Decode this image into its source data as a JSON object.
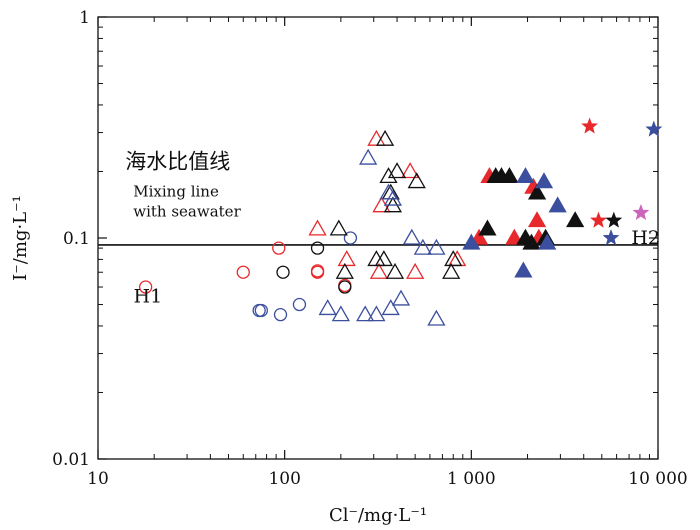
{
  "chart_data": {
    "type": "scatter",
    "title": "",
    "xlabel": "Cl⁻/mg·L⁻¹",
    "ylabel": "I⁻/mg·L⁻¹",
    "xscale": "log",
    "yscale": "log",
    "xlim": [
      10,
      10000
    ],
    "ylim": [
      0.01,
      1
    ],
    "x_ticks": [
      {
        "value": 10,
        "label": "10"
      },
      {
        "value": 100,
        "label": "100"
      },
      {
        "value": 1000,
        "label": "1 000"
      },
      {
        "value": 10000,
        "label": "10 000"
      }
    ],
    "y_ticks": [
      {
        "value": 0.01,
        "label": "0.01"
      },
      {
        "value": 0.1,
        "label": "0.1"
      },
      {
        "value": 1,
        "label": "1"
      }
    ],
    "mixing_line": {
      "y": 0.093,
      "label_cn": "海水比值线",
      "label_en_1": "Mixing line",
      "label_en_2": "with seawater",
      "label_at": {
        "x": 14,
        "y": 0.19
      }
    },
    "annotations": [
      {
        "text": "H1",
        "x": 15.5,
        "y": 0.055
      },
      {
        "text": "H2",
        "x": 7200,
        "y": 0.101
      }
    ],
    "colors": {
      "red": "#e8292b",
      "black": "#111111",
      "blue": "#3b4f9e",
      "pink": "#cc66bb"
    },
    "series": [
      {
        "name": "open circle red",
        "marker": "circle",
        "fill": "open",
        "color": "red",
        "points": [
          [
            18,
            0.06
          ],
          [
            60,
            0.07
          ],
          [
            93,
            0.09
          ],
          [
            150,
            0.07
          ],
          [
            150,
            0.071
          ],
          [
            210,
            0.061
          ]
        ]
      },
      {
        "name": "open circle black",
        "marker": "circle",
        "fill": "open",
        "color": "black",
        "points": [
          [
            98,
            0.07
          ],
          [
            150,
            0.09
          ],
          [
            210,
            0.06
          ]
        ]
      },
      {
        "name": "open circle blue",
        "marker": "circle",
        "fill": "open",
        "color": "blue",
        "points": [
          [
            73,
            0.047
          ],
          [
            75,
            0.047
          ],
          [
            95,
            0.045
          ],
          [
            120,
            0.05
          ],
          [
            225,
            0.1
          ]
        ]
      },
      {
        "name": "open triangle red",
        "marker": "triangle",
        "fill": "open",
        "color": "red",
        "points": [
          [
            150,
            0.11
          ],
          [
            215,
            0.08
          ],
          [
            310,
            0.28
          ],
          [
            330,
            0.14
          ],
          [
            320,
            0.07
          ],
          [
            470,
            0.2
          ],
          [
            500,
            0.07
          ],
          [
            840,
            0.08
          ]
        ]
      },
      {
        "name": "open triangle black",
        "marker": "triangle",
        "fill": "open",
        "color": "black",
        "points": [
          [
            195,
            0.11
          ],
          [
            210,
            0.07
          ],
          [
            345,
            0.28
          ],
          [
            360,
            0.19
          ],
          [
            370,
            0.16
          ],
          [
            380,
            0.14
          ],
          [
            310,
            0.08
          ],
          [
            340,
            0.08
          ],
          [
            400,
            0.2
          ],
          [
            390,
            0.07
          ],
          [
            510,
            0.18
          ],
          [
            780,
            0.07
          ],
          [
            800,
            0.08
          ]
        ]
      },
      {
        "name": "open triangle blue",
        "marker": "triangle",
        "fill": "open",
        "color": "blue",
        "points": [
          [
            280,
            0.23
          ],
          [
            360,
            0.16
          ],
          [
            380,
            0.15
          ],
          [
            480,
            0.1
          ],
          [
            550,
            0.09
          ],
          [
            650,
            0.09
          ],
          [
            170,
            0.048
          ],
          [
            200,
            0.045
          ],
          [
            270,
            0.045
          ],
          [
            310,
            0.045
          ],
          [
            370,
            0.048
          ],
          [
            420,
            0.053
          ],
          [
            650,
            0.043
          ]
        ]
      },
      {
        "name": "filled triangle red",
        "marker": "triangle",
        "fill": "solid",
        "color": "red",
        "points": [
          [
            1100,
            0.1
          ],
          [
            1250,
            0.19
          ],
          [
            1700,
            0.1
          ],
          [
            2150,
            0.17
          ],
          [
            2250,
            0.12
          ],
          [
            2300,
            0.1
          ]
        ]
      },
      {
        "name": "filled triangle black",
        "marker": "triangle",
        "fill": "solid",
        "color": "black",
        "points": [
          [
            1220,
            0.11
          ],
          [
            1350,
            0.19
          ],
          [
            1450,
            0.19
          ],
          [
            1600,
            0.19
          ],
          [
            1950,
            0.1
          ],
          [
            2100,
            0.095
          ],
          [
            2250,
            0.16
          ],
          [
            2500,
            0.1
          ],
          [
            3600,
            0.12
          ]
        ]
      },
      {
        "name": "filled triangle blue",
        "marker": "triangle",
        "fill": "solid",
        "color": "blue",
        "points": [
          [
            1000,
            0.095
          ],
          [
            1900,
            0.071
          ],
          [
            1950,
            0.19
          ],
          [
            2450,
            0.18
          ],
          [
            2900,
            0.14
          ],
          [
            2550,
            0.095
          ]
        ]
      },
      {
        "name": "filled star red",
        "marker": "star",
        "fill": "solid",
        "color": "red",
        "points": [
          [
            4300,
            0.32
          ],
          [
            4800,
            0.12
          ]
        ]
      },
      {
        "name": "filled star black",
        "marker": "star",
        "fill": "solid",
        "color": "black",
        "points": [
          [
            5800,
            0.12
          ]
        ]
      },
      {
        "name": "filled star blue",
        "marker": "star",
        "fill": "solid",
        "color": "blue",
        "points": [
          [
            5600,
            0.1
          ],
          [
            9500,
            0.31
          ]
        ]
      },
      {
        "name": "filled star pink",
        "marker": "star",
        "fill": "solid",
        "color": "pink",
        "points": [
          [
            8100,
            0.13
          ]
        ]
      }
    ]
  }
}
